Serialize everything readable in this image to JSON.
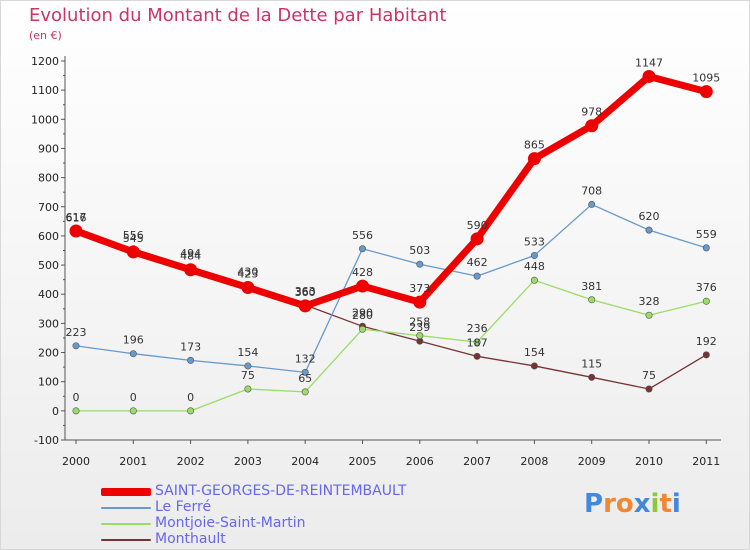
{
  "chart_data": {
    "type": "line",
    "title": "Evolution du Montant de la Dette par Habitant",
    "subtitle": "(en €)",
    "xlabel": "",
    "ylabel": "",
    "ylim": [
      -100,
      1200
    ],
    "yticks": [
      -100,
      0,
      100,
      200,
      300,
      400,
      500,
      600,
      700,
      800,
      900,
      1000,
      1100,
      1200
    ],
    "categories": [
      "2000",
      "2001",
      "2002",
      "2003",
      "2004",
      "2005",
      "2006",
      "2007",
      "2008",
      "2009",
      "2010",
      "2011"
    ],
    "grid": false,
    "legend_position": "bottom-left",
    "series": [
      {
        "name": "SAINT-GEORGES-DE-REINTEMBAULT",
        "color": "#ee0000",
        "values": [
          617,
          545,
          484,
          423,
          360,
          428,
          373,
          590,
          865,
          978,
          1147,
          1095
        ]
      },
      {
        "name": "Le Ferré",
        "color": "#6699cc",
        "values": [
          223,
          196,
          173,
          154,
          132,
          556,
          503,
          462,
          533,
          708,
          620,
          559
        ]
      },
      {
        "name": "Montjoie-Saint-Martin",
        "color": "#99dd66",
        "values": [
          0,
          0,
          0,
          75,
          65,
          280,
          258,
          236,
          448,
          381,
          328,
          376
        ]
      },
      {
        "name": "Monthault",
        "color": "#773333",
        "values": [
          616,
          556,
          494,
          430,
          363,
          290,
          239,
          187,
          154,
          115,
          75,
          192
        ]
      }
    ]
  },
  "logo": {
    "text": "Proxiti",
    "letter_colors": [
      "#4488dd",
      "#ee8833",
      "#ee8833",
      "#4488dd",
      "#88cc33",
      "#ee8833",
      "#4488dd"
    ]
  }
}
